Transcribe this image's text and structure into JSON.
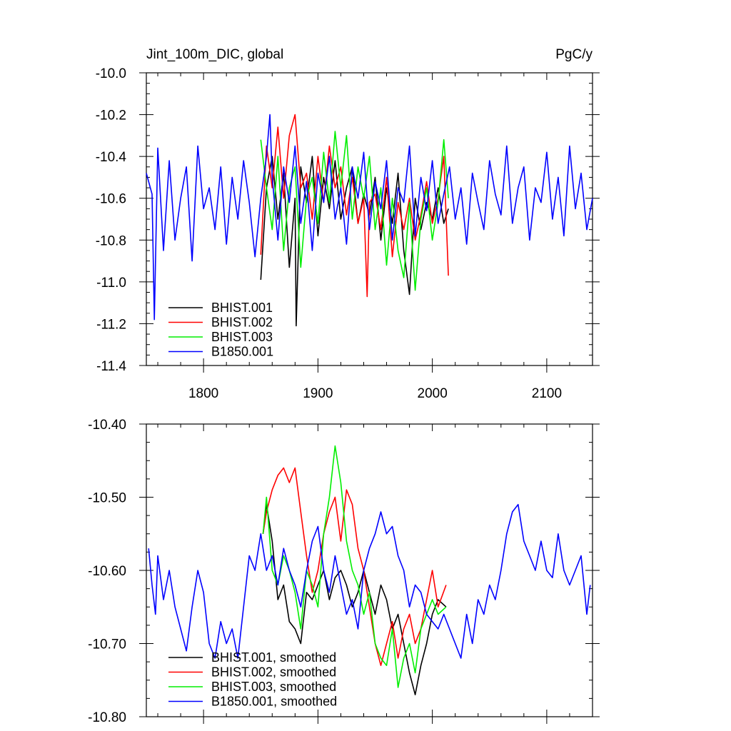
{
  "chart_data": [
    {
      "type": "line",
      "title": "Jint_100m_DIC, global",
      "units": "PgC/y",
      "xlabel": "",
      "ylabel": "",
      "xlim": [
        1750,
        2140
      ],
      "ylim": [
        -11.4,
        -10.0
      ],
      "x_ticks": [
        1800,
        1900,
        2000,
        2100
      ],
      "x_tick_labels": [
        "1800",
        "1900",
        "2000",
        "2100"
      ],
      "y_ticks": [
        -10.0,
        -10.2,
        -10.4,
        -10.6,
        -10.8,
        -11.0,
        -11.2,
        -11.4
      ],
      "y_tick_labels": [
        "-10.0",
        "-10.2",
        "-10.4",
        "-10.6",
        "-10.8",
        "-11.0",
        "-11.2",
        "-11.4"
      ],
      "grid": false,
      "legend_position": "bottom-left",
      "series": [
        {
          "name": "BHIST.001",
          "color": "#000000",
          "x": [
            1850,
            1855,
            1860,
            1865,
            1870,
            1875,
            1880,
            1881,
            1885,
            1890,
            1895,
            1900,
            1905,
            1910,
            1915,
            1920,
            1925,
            1930,
            1935,
            1940,
            1945,
            1950,
            1955,
            1960,
            1965,
            1970,
            1975,
            1980,
            1985,
            1990,
            1995,
            2000,
            2005,
            2010,
            2014
          ],
          "y": [
            -10.99,
            -10.55,
            -10.4,
            -10.7,
            -10.48,
            -10.93,
            -10.6,
            -11.21,
            -10.45,
            -10.62,
            -10.4,
            -10.78,
            -10.5,
            -10.65,
            -10.42,
            -10.7,
            -10.55,
            -10.45,
            -10.72,
            -10.58,
            -10.68,
            -10.5,
            -10.8,
            -10.55,
            -10.72,
            -10.48,
            -10.85,
            -11.06,
            -10.6,
            -10.75,
            -10.62,
            -10.7,
            -10.55,
            -10.72,
            -10.65
          ]
        },
        {
          "name": "BHIST.002",
          "color": "#ff0000",
          "x": [
            1850,
            1855,
            1860,
            1865,
            1870,
            1875,
            1880,
            1885,
            1890,
            1895,
            1900,
            1905,
            1910,
            1915,
            1920,
            1925,
            1930,
            1935,
            1940,
            1943,
            1945,
            1950,
            1955,
            1960,
            1965,
            1970,
            1975,
            1980,
            1985,
            1990,
            1995,
            2000,
            2005,
            2010,
            2014
          ],
          "y": [
            -10.87,
            -10.35,
            -10.55,
            -10.26,
            -10.6,
            -10.3,
            -10.2,
            -10.55,
            -10.48,
            -10.7,
            -10.4,
            -10.62,
            -10.35,
            -10.55,
            -10.45,
            -10.68,
            -10.5,
            -10.72,
            -10.6,
            -11.07,
            -10.62,
            -10.58,
            -10.75,
            -10.5,
            -10.88,
            -10.62,
            -10.75,
            -10.6,
            -10.8,
            -10.68,
            -10.52,
            -10.72,
            -10.6,
            -10.4,
            -10.97
          ]
        },
        {
          "name": "BHIST.003",
          "color": "#00ee00",
          "x": [
            1850,
            1855,
            1860,
            1865,
            1870,
            1875,
            1880,
            1885,
            1890,
            1895,
            1900,
            1905,
            1910,
            1915,
            1920,
            1925,
            1930,
            1935,
            1940,
            1945,
            1950,
            1955,
            1960,
            1965,
            1970,
            1975,
            1980,
            1985,
            1990,
            1995,
            2000,
            2005,
            2010,
            2014
          ],
          "y": [
            -10.32,
            -10.55,
            -10.75,
            -10.4,
            -10.85,
            -10.55,
            -10.45,
            -10.93,
            -10.6,
            -10.5,
            -10.72,
            -10.38,
            -10.62,
            -10.28,
            -10.55,
            -10.3,
            -10.7,
            -10.45,
            -10.6,
            -10.4,
            -10.75,
            -10.55,
            -10.92,
            -10.6,
            -10.85,
            -10.98,
            -10.62,
            -11.04,
            -10.7,
            -10.55,
            -10.8,
            -10.62,
            -10.32,
            -10.6
          ]
        },
        {
          "name": "B1850.001",
          "color": "#0000ff",
          "x": [
            1750,
            1755,
            1757,
            1760,
            1765,
            1770,
            1775,
            1780,
            1785,
            1790,
            1795,
            1800,
            1805,
            1810,
            1815,
            1820,
            1825,
            1830,
            1835,
            1840,
            1845,
            1850,
            1855,
            1858,
            1860,
            1865,
            1870,
            1875,
            1880,
            1885,
            1890,
            1895,
            1900,
            1905,
            1910,
            1915,
            1920,
            1925,
            1930,
            1935,
            1940,
            1945,
            1950,
            1955,
            1960,
            1965,
            1970,
            1975,
            1980,
            1985,
            1990,
            1995,
            2000,
            2005,
            2010,
            2015,
            2020,
            2025,
            2030,
            2035,
            2040,
            2045,
            2050,
            2055,
            2060,
            2065,
            2070,
            2075,
            2080,
            2085,
            2090,
            2095,
            2100,
            2105,
            2110,
            2115,
            2120,
            2125,
            2130,
            2135,
            2140
          ],
          "y": [
            -10.48,
            -10.58,
            -11.18,
            -10.36,
            -10.85,
            -10.42,
            -10.8,
            -10.6,
            -10.45,
            -10.9,
            -10.35,
            -10.65,
            -10.55,
            -10.75,
            -10.45,
            -10.82,
            -10.5,
            -10.7,
            -10.42,
            -10.62,
            -10.88,
            -10.6,
            -10.4,
            -10.2,
            -10.5,
            -10.8,
            -10.45,
            -10.62,
            -10.35,
            -10.72,
            -10.52,
            -10.85,
            -10.48,
            -10.62,
            -10.4,
            -10.7,
            -10.55,
            -10.82,
            -10.45,
            -10.6,
            -10.38,
            -10.75,
            -10.52,
            -10.65,
            -10.42,
            -10.8,
            -10.55,
            -10.62,
            -10.35,
            -10.78,
            -10.5,
            -10.66,
            -10.42,
            -10.72,
            -10.58,
            -10.45,
            -10.7,
            -10.55,
            -10.82,
            -10.48,
            -10.62,
            -10.75,
            -10.42,
            -10.58,
            -10.68,
            -10.35,
            -10.72,
            -10.55,
            -10.45,
            -10.8,
            -10.55,
            -10.62,
            -10.38,
            -10.7,
            -10.5,
            -10.78,
            -10.35,
            -10.65,
            -10.48,
            -10.75,
            -10.6
          ]
        }
      ]
    },
    {
      "type": "line",
      "title": "",
      "xlabel": "",
      "ylabel": "",
      "xlim": [
        1750,
        2140
      ],
      "ylim": [
        -10.8,
        -10.4
      ],
      "x_ticks": [
        1800,
        1900,
        2000,
        2100
      ],
      "y_ticks": [
        -10.4,
        -10.5,
        -10.6,
        -10.7,
        -10.8
      ],
      "y_tick_labels": [
        "-10.40",
        "-10.50",
        "-10.60",
        "-10.70",
        "-10.80"
      ],
      "grid": false,
      "legend_position": "bottom-left",
      "series": [
        {
          "name": "BHIST.001, smoothed",
          "color": "#000000",
          "x": [
            1852,
            1855,
            1860,
            1865,
            1870,
            1875,
            1880,
            1885,
            1890,
            1895,
            1900,
            1905,
            1910,
            1915,
            1920,
            1925,
            1930,
            1935,
            1940,
            1945,
            1950,
            1955,
            1960,
            1965,
            1970,
            1975,
            1980,
            1985,
            1990,
            1995,
            2000,
            2005,
            2012
          ],
          "y": [
            -10.55,
            -10.51,
            -10.56,
            -10.64,
            -10.62,
            -10.67,
            -10.68,
            -10.7,
            -10.63,
            -10.64,
            -10.62,
            -10.6,
            -10.64,
            -10.61,
            -10.6,
            -10.62,
            -10.65,
            -10.63,
            -10.6,
            -10.63,
            -10.66,
            -10.62,
            -10.64,
            -10.68,
            -10.66,
            -10.7,
            -10.74,
            -10.77,
            -10.73,
            -10.7,
            -10.66,
            -10.64,
            -10.65
          ]
        },
        {
          "name": "BHIST.002, smoothed",
          "color": "#ff0000",
          "x": [
            1852,
            1855,
            1860,
            1865,
            1870,
            1875,
            1880,
            1885,
            1890,
            1895,
            1900,
            1905,
            1910,
            1915,
            1920,
            1925,
            1930,
            1935,
            1940,
            1945,
            1950,
            1955,
            1960,
            1965,
            1970,
            1975,
            1980,
            1985,
            1990,
            1995,
            2000,
            2005,
            2012
          ],
          "y": [
            -10.55,
            -10.52,
            -10.49,
            -10.47,
            -10.46,
            -10.48,
            -10.46,
            -10.52,
            -10.58,
            -10.63,
            -10.6,
            -10.55,
            -10.52,
            -10.5,
            -10.56,
            -10.49,
            -10.51,
            -10.57,
            -10.6,
            -10.65,
            -10.7,
            -10.73,
            -10.7,
            -10.67,
            -10.72,
            -10.68,
            -10.66,
            -10.7,
            -10.68,
            -10.64,
            -10.6,
            -10.65,
            -10.62
          ]
        },
        {
          "name": "BHIST.003, smoothed",
          "color": "#00ee00",
          "x": [
            1852,
            1855,
            1860,
            1865,
            1870,
            1875,
            1880,
            1885,
            1890,
            1895,
            1900,
            1905,
            1910,
            1915,
            1920,
            1925,
            1930,
            1935,
            1940,
            1945,
            1950,
            1955,
            1960,
            1965,
            1970,
            1975,
            1980,
            1985,
            1990,
            1995,
            2000,
            2005,
            2012
          ],
          "y": [
            -10.55,
            -10.5,
            -10.6,
            -10.62,
            -10.58,
            -10.6,
            -10.63,
            -10.68,
            -10.6,
            -10.62,
            -10.65,
            -10.55,
            -10.5,
            -10.43,
            -10.48,
            -10.56,
            -10.6,
            -10.62,
            -10.66,
            -10.63,
            -10.7,
            -10.72,
            -10.73,
            -10.68,
            -10.76,
            -10.72,
            -10.7,
            -10.74,
            -10.68,
            -10.66,
            -10.64,
            -10.66,
            -10.65
          ]
        },
        {
          "name": "B1850.001, smoothed",
          "color": "#0000ff",
          "x": [
            1752,
            1755,
            1758,
            1760,
            1765,
            1770,
            1775,
            1780,
            1785,
            1790,
            1795,
            1800,
            1805,
            1810,
            1815,
            1820,
            1825,
            1830,
            1835,
            1840,
            1845,
            1850,
            1855,
            1860,
            1865,
            1870,
            1875,
            1880,
            1885,
            1890,
            1895,
            1900,
            1905,
            1910,
            1915,
            1920,
            1925,
            1930,
            1935,
            1940,
            1945,
            1950,
            1955,
            1960,
            1965,
            1970,
            1975,
            1980,
            1985,
            1990,
            1995,
            2000,
            2005,
            2010,
            2015,
            2020,
            2025,
            2030,
            2035,
            2040,
            2045,
            2050,
            2055,
            2060,
            2065,
            2070,
            2075,
            2080,
            2085,
            2090,
            2095,
            2100,
            2105,
            2110,
            2115,
            2120,
            2125,
            2130,
            2135,
            2138
          ],
          "y": [
            -10.57,
            -10.62,
            -10.66,
            -10.58,
            -10.64,
            -10.6,
            -10.65,
            -10.68,
            -10.71,
            -10.65,
            -10.6,
            -10.63,
            -10.7,
            -10.72,
            -10.67,
            -10.7,
            -10.68,
            -10.72,
            -10.65,
            -10.58,
            -10.6,
            -10.55,
            -10.6,
            -10.58,
            -10.62,
            -10.57,
            -10.6,
            -10.62,
            -10.65,
            -10.6,
            -10.56,
            -10.54,
            -10.6,
            -10.63,
            -10.58,
            -10.62,
            -10.66,
            -10.64,
            -10.68,
            -10.6,
            -10.57,
            -10.55,
            -10.52,
            -10.55,
            -10.54,
            -10.58,
            -10.6,
            -10.65,
            -10.62,
            -10.63,
            -10.66,
            -10.67,
            -10.68,
            -10.66,
            -10.68,
            -10.7,
            -10.72,
            -10.66,
            -10.7,
            -10.64,
            -10.66,
            -10.62,
            -10.64,
            -10.6,
            -10.55,
            -10.52,
            -10.51,
            -10.56,
            -10.58,
            -10.6,
            -10.56,
            -10.6,
            -10.61,
            -10.55,
            -10.6,
            -10.62,
            -10.6,
            -10.58,
            -10.66,
            -10.62
          ]
        }
      ]
    }
  ]
}
